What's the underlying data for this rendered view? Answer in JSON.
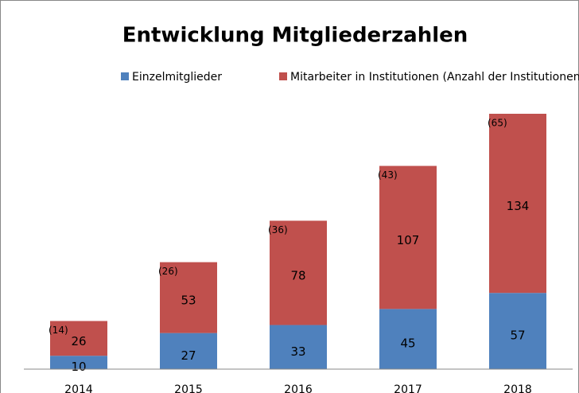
{
  "chart_data": {
    "type": "stacked_bar",
    "title": "Entwicklung Mitgliederzahlen",
    "categories": [
      "2014",
      "2015",
      "2016",
      "2017",
      "2018"
    ],
    "series": [
      {
        "name": "Einzelmitglieder",
        "color": "#4f81bd",
        "values": [
          10,
          27,
          33,
          45,
          57
        ]
      },
      {
        "name": "Mitarbeiter in Institutionen (Anzahl der Institutionen)",
        "color": "#c0504d",
        "values": [
          26,
          53,
          78,
          107,
          134
        ]
      }
    ],
    "annotations": [
      "(14)",
      "(26)",
      "(36)",
      "(43)",
      "(65)"
    ],
    "legend": "top"
  }
}
